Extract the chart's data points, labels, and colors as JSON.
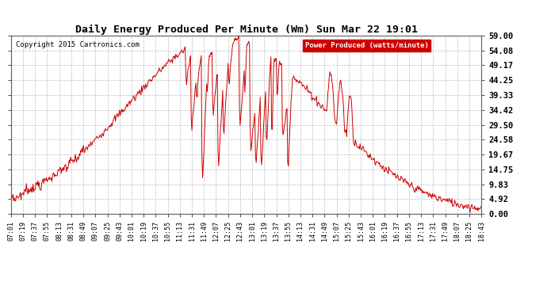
{
  "title": "Daily Energy Produced Per Minute (Wm) Sun Mar 22 19:01",
  "copyright": "Copyright 2015 Cartronics.com",
  "legend_label": "Power Produced (watts/minute)",
  "legend_bg": "#cc0000",
  "legend_fg": "#ffffff",
  "line_color": "#cc0000",
  "bg_color": "#ffffff",
  "grid_color": "#bbbbbb",
  "yticks": [
    0.0,
    4.92,
    9.83,
    14.75,
    19.67,
    24.58,
    29.5,
    34.42,
    39.33,
    44.25,
    49.17,
    54.08,
    59.0
  ],
  "ymax": 59.0,
  "ymin": 0.0,
  "xtick_labels": [
    "07:01",
    "07:19",
    "07:37",
    "07:55",
    "08:13",
    "08:31",
    "08:49",
    "09:07",
    "09:25",
    "09:43",
    "10:01",
    "10:19",
    "10:37",
    "10:55",
    "11:13",
    "11:31",
    "11:49",
    "12:07",
    "12:25",
    "12:43",
    "13:01",
    "13:19",
    "13:37",
    "13:55",
    "14:13",
    "14:31",
    "14:49",
    "15:07",
    "15:25",
    "15:43",
    "16:01",
    "16:19",
    "16:37",
    "16:55",
    "17:13",
    "17:31",
    "17:49",
    "18:07",
    "18:25",
    "18:43"
  ]
}
